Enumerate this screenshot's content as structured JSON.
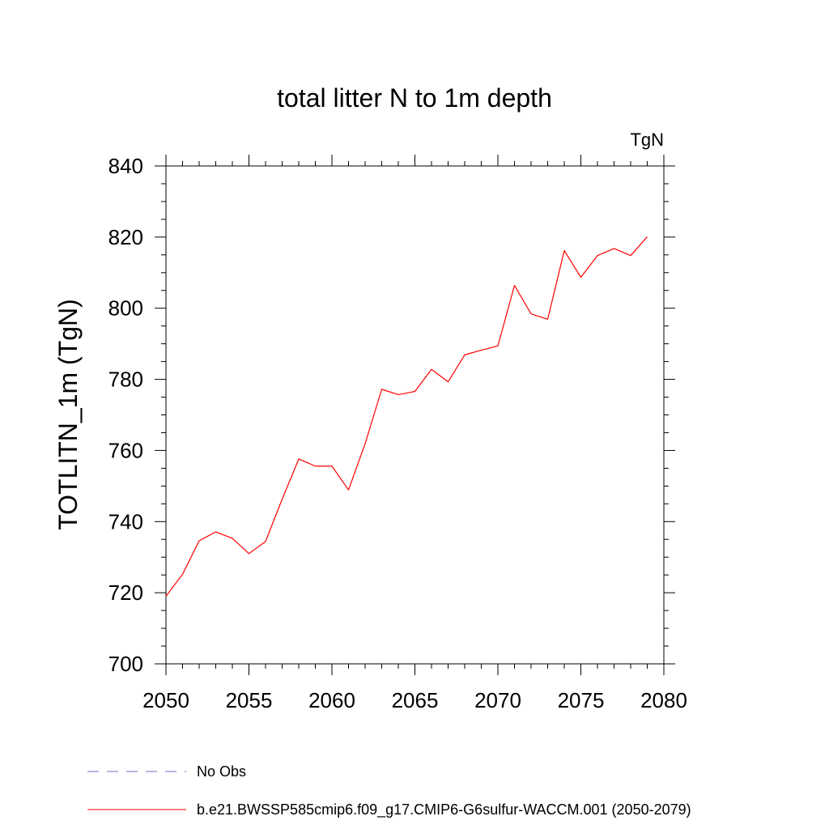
{
  "chart_data": {
    "type": "line",
    "title": "total litter N to 1m depth",
    "units_label": "TgN",
    "ylabel": "TOTLITN_1m  (TgN)",
    "xlabel": "",
    "xlim": [
      2050,
      2080
    ],
    "ylim": [
      700,
      840
    ],
    "x_ticks": [
      "2050",
      "2055",
      "2060",
      "2065",
      "2070",
      "2075",
      "2080"
    ],
    "y_ticks": [
      "700",
      "720",
      "740",
      "760",
      "780",
      "800",
      "820",
      "840"
    ],
    "grid": false,
    "legend_position": "bottom-left",
    "series": [
      {
        "name": "No Obs",
        "color": "#7b68c8",
        "dash": "dashed",
        "x": [],
        "y": []
      },
      {
        "name": "b.e21.BWSSP585cmip6.f09_g17.CMIP6-G6sulfur-WACCM.001 (2050-2079)",
        "color": "#ff0000",
        "dash": "solid",
        "x": [
          2050,
          2051,
          2052,
          2053,
          2054,
          2055,
          2056,
          2057,
          2058,
          2059,
          2060,
          2061,
          2062,
          2063,
          2064,
          2065,
          2066,
          2067,
          2068,
          2069,
          2070,
          2071,
          2072,
          2073,
          2074,
          2075,
          2076,
          2077,
          2078,
          2079
        ],
        "y": [
          719.0,
          725.2,
          734.6,
          737.1,
          735.3,
          731.0,
          734.4,
          746.3,
          757.6,
          755.6,
          755.6,
          748.9,
          761.9,
          777.2,
          775.7,
          776.6,
          782.8,
          779.3,
          786.9,
          788.2,
          789.4,
          806.4,
          798.4,
          796.9,
          816.2,
          808.7,
          814.8,
          816.8,
          814.8,
          820.1
        ]
      }
    ]
  }
}
